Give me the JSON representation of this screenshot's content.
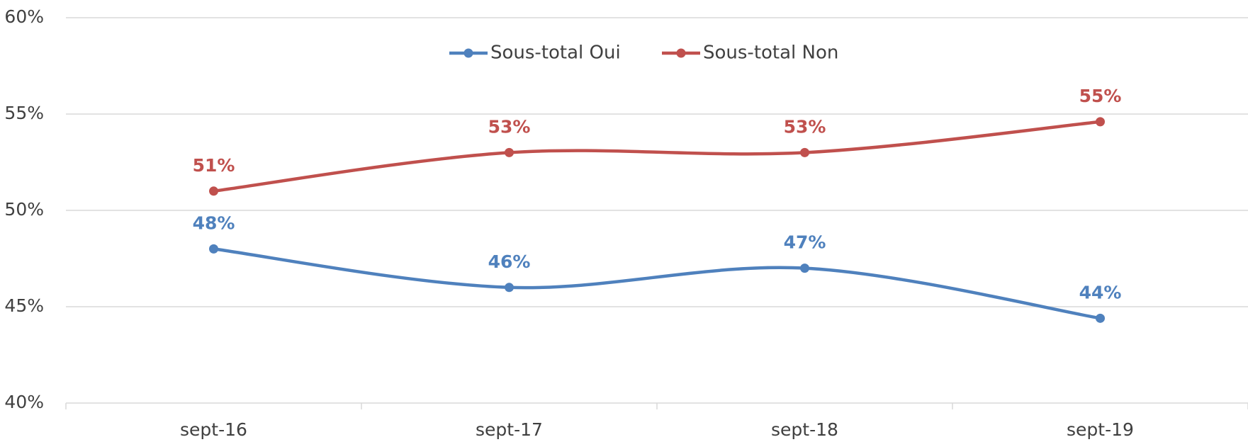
{
  "chart_data": {
    "type": "line",
    "categories": [
      "sept-16",
      "sept-17",
      "sept-18",
      "sept-19"
    ],
    "series": [
      {
        "name": "Sous-total Oui",
        "color": "#4f81bd",
        "values": [
          48,
          46,
          47,
          44.4
        ],
        "value_labels": [
          "48%",
          "46%",
          "47%",
          "44%"
        ]
      },
      {
        "name": "Sous-total Non",
        "color": "#c0504d",
        "values": [
          51,
          53,
          53,
          54.6
        ],
        "value_labels": [
          "51%",
          "53%",
          "53%",
          "55%"
        ]
      }
    ],
    "ylim": [
      40,
      60
    ],
    "yticks": [
      {
        "value": 40,
        "label": "40%"
      },
      {
        "value": 45,
        "label": "45%"
      },
      {
        "value": 50,
        "label": "50%"
      },
      {
        "value": 55,
        "label": "55%"
      },
      {
        "value": 60,
        "label": "60%"
      }
    ],
    "grid": true,
    "legend": "top"
  }
}
